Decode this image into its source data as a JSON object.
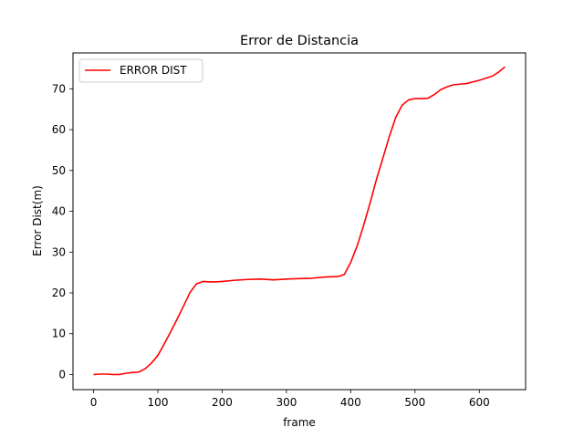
{
  "chart_data": {
    "type": "line",
    "title": "Error de Distancia",
    "xlabel": "frame",
    "ylabel": "Error Dist(m)",
    "xlim": [
      -32,
      672
    ],
    "ylim": [
      -3.7,
      78.8
    ],
    "xticks": [
      0,
      100,
      200,
      300,
      400,
      500,
      600
    ],
    "yticks": [
      0,
      10,
      20,
      30,
      40,
      50,
      60,
      70
    ],
    "grid": false,
    "legend_position": "upper left",
    "series": [
      {
        "name": "ERROR DIST",
        "color": "#ff0000",
        "x": [
          0,
          10,
          20,
          30,
          40,
          50,
          60,
          70,
          80,
          90,
          100,
          110,
          120,
          130,
          140,
          150,
          160,
          170,
          180,
          190,
          200,
          220,
          240,
          260,
          280,
          300,
          320,
          340,
          360,
          380,
          390,
          400,
          410,
          420,
          430,
          440,
          450,
          460,
          470,
          480,
          490,
          500,
          510,
          520,
          530,
          540,
          550,
          560,
          580,
          600,
          620,
          630,
          640
        ],
        "y": [
          0,
          0.1,
          0.1,
          0.0,
          0.0,
          0.3,
          0.5,
          0.6,
          1.4,
          2.8,
          4.7,
          7.5,
          10.5,
          13.6,
          16.8,
          20.1,
          22.2,
          22.8,
          22.7,
          22.7,
          22.8,
          23.1,
          23.3,
          23.4,
          23.2,
          23.4,
          23.5,
          23.6,
          23.9,
          24.0,
          24.5,
          27.5,
          31.5,
          36.5,
          42.0,
          47.8,
          53.0,
          58.3,
          63.0,
          66.0,
          67.3,
          67.6,
          67.6,
          67.7,
          68.6,
          69.8,
          70.5,
          71.0,
          71.3,
          72.1,
          73.1,
          74.1,
          75.4
        ]
      }
    ]
  }
}
